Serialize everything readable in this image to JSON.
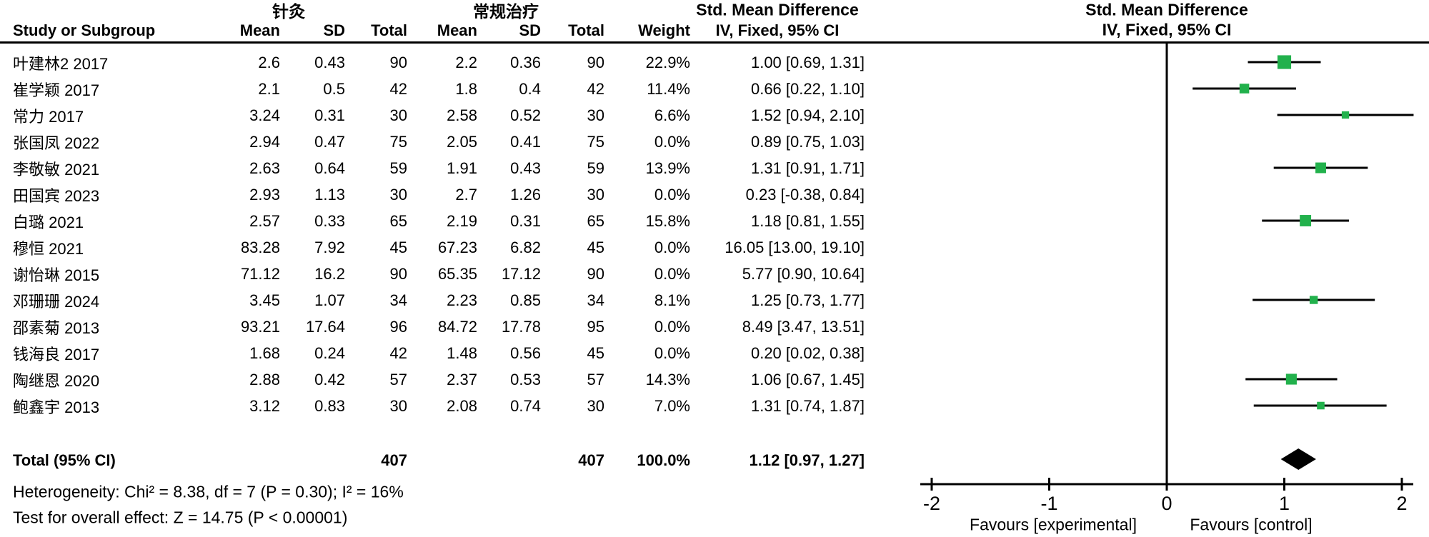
{
  "header": {
    "group_experimental": "针灸",
    "group_control": "常规治疗",
    "effect_title": "Std. Mean Difference",
    "effect_subtitle": "IV, Fixed, 95% CI",
    "plot_title": "Std. Mean Difference",
    "plot_subtitle": "IV, Fixed, 95% CI",
    "columns": [
      "Study or Subgroup",
      "Mean",
      "SD",
      "Total",
      "Mean",
      "SD",
      "Total",
      "Weight",
      "IV, Fixed, 95% CI"
    ]
  },
  "rows": [
    {
      "study": "叶建林2 2017",
      "mean_e": "2.6",
      "sd_e": "0.43",
      "total_e": "90",
      "mean_c": "2.2",
      "sd_c": "0.36",
      "total_c": "90",
      "weight": "22.9%",
      "ci": "1.00 [0.69, 1.31]"
    },
    {
      "study": "崔学颖 2017",
      "mean_e": "2.1",
      "sd_e": "0.5",
      "total_e": "42",
      "mean_c": "1.8",
      "sd_c": "0.4",
      "total_c": "42",
      "weight": "11.4%",
      "ci": "0.66 [0.22, 1.10]"
    },
    {
      "study": "常力 2017",
      "mean_e": "3.24",
      "sd_e": "0.31",
      "total_e": "30",
      "mean_c": "2.58",
      "sd_c": "0.52",
      "total_c": "30",
      "weight": "6.6%",
      "ci": "1.52 [0.94, 2.10]"
    },
    {
      "study": "张国凤 2022",
      "mean_e": "2.94",
      "sd_e": "0.47",
      "total_e": "75",
      "mean_c": "2.05",
      "sd_c": "0.41",
      "total_c": "75",
      "weight": "0.0%",
      "ci": "0.89 [0.75, 1.03]"
    },
    {
      "study": "李敬敏 2021",
      "mean_e": "2.63",
      "sd_e": "0.64",
      "total_e": "59",
      "mean_c": "1.91",
      "sd_c": "0.43",
      "total_c": "59",
      "weight": "13.9%",
      "ci": "1.31 [0.91, 1.71]"
    },
    {
      "study": "田国宾 2023",
      "mean_e": "2.93",
      "sd_e": "1.13",
      "total_e": "30",
      "mean_c": "2.7",
      "sd_c": "1.26",
      "total_c": "30",
      "weight": "0.0%",
      "ci": "0.23 [-0.38, 0.84]"
    },
    {
      "study": "白璐 2021",
      "mean_e": "2.57",
      "sd_e": "0.33",
      "total_e": "65",
      "mean_c": "2.19",
      "sd_c": "0.31",
      "total_c": "65",
      "weight": "15.8%",
      "ci": "1.18 [0.81, 1.55]"
    },
    {
      "study": "穆恒 2021",
      "mean_e": "83.28",
      "sd_e": "7.92",
      "total_e": "45",
      "mean_c": "67.23",
      "sd_c": "6.82",
      "total_c": "45",
      "weight": "0.0%",
      "ci": "16.05 [13.00, 19.10]"
    },
    {
      "study": "谢怡琳 2015",
      "mean_e": "71.12",
      "sd_e": "16.2",
      "total_e": "90",
      "mean_c": "65.35",
      "sd_c": "17.12",
      "total_c": "90",
      "weight": "0.0%",
      "ci": "5.77 [0.90, 10.64]"
    },
    {
      "study": "邓珊珊 2024",
      "mean_e": "3.45",
      "sd_e": "1.07",
      "total_e": "34",
      "mean_c": "2.23",
      "sd_c": "0.85",
      "total_c": "34",
      "weight": "8.1%",
      "ci": "1.25 [0.73, 1.77]"
    },
    {
      "study": "邵素菊 2013",
      "mean_e": "93.21",
      "sd_e": "17.64",
      "total_e": "96",
      "mean_c": "84.72",
      "sd_c": "17.78",
      "total_c": "95",
      "weight": "0.0%",
      "ci": "8.49 [3.47, 13.51]"
    },
    {
      "study": "钱海良 2017",
      "mean_e": "1.68",
      "sd_e": "0.24",
      "total_e": "42",
      "mean_c": "1.48",
      "sd_c": "0.56",
      "total_c": "45",
      "weight": "0.0%",
      "ci": "0.20 [0.02, 0.38]"
    },
    {
      "study": "陶继恩 2020",
      "mean_e": "2.88",
      "sd_e": "0.42",
      "total_e": "57",
      "mean_c": "2.37",
      "sd_c": "0.53",
      "total_c": "57",
      "weight": "14.3%",
      "ci": "1.06 [0.67, 1.45]"
    },
    {
      "study": "鲍鑫宇 2013",
      "mean_e": "3.12",
      "sd_e": "0.83",
      "total_e": "30",
      "mean_c": "2.08",
      "sd_c": "0.74",
      "total_c": "30",
      "weight": "7.0%",
      "ci": "1.31 [0.74, 1.87]"
    }
  ],
  "total": {
    "label": "Total (95% CI)",
    "total_e": "407",
    "total_c": "407",
    "weight": "100.0%",
    "ci": "1.12 [0.97, 1.27]"
  },
  "footer": {
    "heterogeneity": "Heterogeneity: Chi² = 8.38, df = 7 (P = 0.30); I² = 16%",
    "overall_effect": "Test for overall effect: Z = 14.75 (P < 0.00001)"
  },
  "colors": {
    "marker_green": "#22B14C",
    "diamond_black": "#000000",
    "line_black": "#000000"
  },
  "chart_data": {
    "type": "scatter",
    "subtype": "forest-plot",
    "title": "Std. Mean Difference",
    "effect_model": "IV, Fixed, 95% CI",
    "xlim": [
      -2,
      2
    ],
    "x_ticks": [
      -2,
      -1,
      0,
      1,
      2
    ],
    "axis_label_left": "Favours [experimental]",
    "axis_label_right": "Favours [control]",
    "studies": [
      {
        "name": "叶建林2 2017",
        "est": 1.0,
        "lo": 0.69,
        "hi": 1.31,
        "weight_pct": 22.9,
        "plotted": true
      },
      {
        "name": "崔学颖 2017",
        "est": 0.66,
        "lo": 0.22,
        "hi": 1.1,
        "weight_pct": 11.4,
        "plotted": true
      },
      {
        "name": "常力 2017",
        "est": 1.52,
        "lo": 0.94,
        "hi": 2.1,
        "weight_pct": 6.6,
        "plotted": true
      },
      {
        "name": "张国凤 2022",
        "est": 0.89,
        "lo": 0.75,
        "hi": 1.03,
        "weight_pct": 0.0,
        "plotted": false
      },
      {
        "name": "李敬敏 2021",
        "est": 1.31,
        "lo": 0.91,
        "hi": 1.71,
        "weight_pct": 13.9,
        "plotted": true
      },
      {
        "name": "田国宾 2023",
        "est": 0.23,
        "lo": -0.38,
        "hi": 0.84,
        "weight_pct": 0.0,
        "plotted": false
      },
      {
        "name": "白璐 2021",
        "est": 1.18,
        "lo": 0.81,
        "hi": 1.55,
        "weight_pct": 15.8,
        "plotted": true
      },
      {
        "name": "穆恒 2021",
        "est": 16.05,
        "lo": 13.0,
        "hi": 19.1,
        "weight_pct": 0.0,
        "plotted": false
      },
      {
        "name": "谢怡琳 2015",
        "est": 5.77,
        "lo": 0.9,
        "hi": 10.64,
        "weight_pct": 0.0,
        "plotted": false
      },
      {
        "name": "邓珊珊 2024",
        "est": 1.25,
        "lo": 0.73,
        "hi": 1.77,
        "weight_pct": 8.1,
        "plotted": true
      },
      {
        "name": "邵素菊 2013",
        "est": 8.49,
        "lo": 3.47,
        "hi": 13.51,
        "weight_pct": 0.0,
        "plotted": false
      },
      {
        "name": "钱海良 2017",
        "est": 0.2,
        "lo": 0.02,
        "hi": 0.38,
        "weight_pct": 0.0,
        "plotted": false
      },
      {
        "name": "陶继恩 2020",
        "est": 1.06,
        "lo": 0.67,
        "hi": 1.45,
        "weight_pct": 14.3,
        "plotted": true
      },
      {
        "name": "鲍鑫宇 2013",
        "est": 1.31,
        "lo": 0.74,
        "hi": 1.87,
        "weight_pct": 7.0,
        "plotted": true
      }
    ],
    "overall": {
      "label": "Total (95% CI)",
      "est": 1.12,
      "lo": 0.97,
      "hi": 1.27
    }
  }
}
